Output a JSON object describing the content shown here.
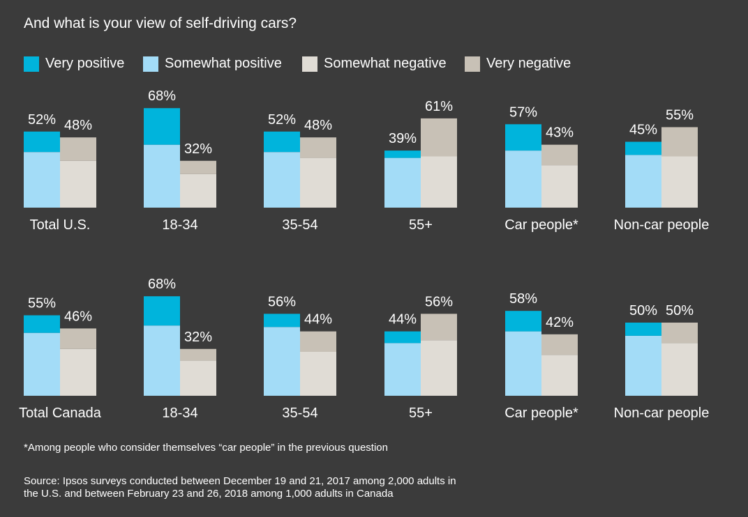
{
  "chart_data": {
    "type": "bar",
    "stacked": true,
    "title": "And what is your view of self-driving cars?",
    "unit": "%",
    "legend": {
      "placement": "top-left",
      "entries": [
        {
          "name": "Very positive",
          "color": "#00b4dc"
        },
        {
          "name": "Somewhat positive",
          "color": "#a3dcf7"
        },
        {
          "name": "Somewhat negative",
          "color": "#e0dcd5"
        },
        {
          "name": "Very negative",
          "color": "#c8c1b6"
        }
      ]
    },
    "rows": [
      {
        "groups": [
          {
            "label": "Total U.S.",
            "positive": {
              "total": 52,
              "very": 14,
              "somewhat": 38
            },
            "negative": {
              "total": 48,
              "somewhat": 32,
              "very": 16
            }
          },
          {
            "label": "18-34",
            "positive": {
              "total": 68,
              "very": 25,
              "somewhat": 43
            },
            "negative": {
              "total": 32,
              "somewhat": 23,
              "very": 9
            }
          },
          {
            "label": "35-54",
            "positive": {
              "total": 52,
              "very": 14,
              "somewhat": 38
            },
            "negative": {
              "total": 48,
              "somewhat": 34,
              "very": 14
            }
          },
          {
            "label": "55+",
            "positive": {
              "total": 39,
              "very": 5,
              "somewhat": 34
            },
            "negative": {
              "total": 61,
              "somewhat": 35,
              "very": 26
            }
          },
          {
            "label": "Car people*",
            "positive": {
              "total": 57,
              "very": 18,
              "somewhat": 39
            },
            "negative": {
              "total": 43,
              "somewhat": 29,
              "very": 14
            }
          },
          {
            "label": "Non-car people",
            "positive": {
              "total": 45,
              "very": 9,
              "somewhat": 36
            },
            "negative": {
              "total": 55,
              "somewhat": 35,
              "very": 20
            }
          }
        ]
      },
      {
        "groups": [
          {
            "label": "Total Canada",
            "positive": {
              "total": 55,
              "very": 12,
              "somewhat": 43
            },
            "negative": {
              "total": 46,
              "somewhat": 32,
              "very": 14
            }
          },
          {
            "label": "18-34",
            "positive": {
              "total": 68,
              "very": 20,
              "somewhat": 48
            },
            "negative": {
              "total": 32,
              "somewhat": 24,
              "very": 8
            }
          },
          {
            "label": "35-54",
            "positive": {
              "total": 56,
              "very": 9,
              "somewhat": 47
            },
            "negative": {
              "total": 44,
              "somewhat": 30,
              "very": 14
            }
          },
          {
            "label": "55+",
            "positive": {
              "total": 44,
              "very": 8,
              "somewhat": 36
            },
            "negative": {
              "total": 56,
              "somewhat": 38,
              "very": 18
            }
          },
          {
            "label": "Car people*",
            "positive": {
              "total": 58,
              "very": 14,
              "somewhat": 44
            },
            "negative": {
              "total": 42,
              "somewhat": 28,
              "very": 14
            }
          },
          {
            "label": "Non-car people",
            "positive": {
              "total": 50,
              "very": 9,
              "somewhat": 41
            },
            "negative": {
              "total": 50,
              "somewhat": 36,
              "very": 14
            }
          }
        ]
      }
    ],
    "footnote": "*Among people who consider themselves “car people” in the previous question",
    "source_line1": "Source: Ipsos surveys conducted between December 19 and 21, 2017 among 2,000 adults in",
    "source_line2": "the U.S. and between February 23 and 26, 2018 among 1,000 adults in Canada"
  }
}
